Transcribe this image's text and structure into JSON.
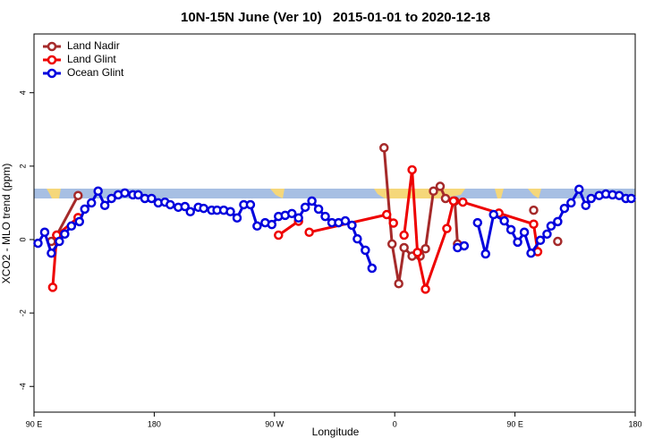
{
  "chart_data": {
    "type": "line",
    "title": "10N-15N June (Ver 10)   2015-01-01 to 2020-12-18",
    "x_label": "Longitude",
    "y_label": "XCO2 - MLO trend (ppm)",
    "xlim": [
      90,
      540
    ],
    "ylim": [
      -4.7,
      5.6
    ],
    "xticks": [
      {
        "value": 90,
        "label": "90 E"
      },
      180,
      {
        "value": 270,
        "label": "90 W"
      },
      {
        "value": 360,
        "label": "0"
      },
      {
        "value": 450,
        "label": "90 E"
      },
      {
        "value": 540,
        "label": "180"
      }
    ],
    "yticks": [
      -4,
      -2,
      0,
      2,
      4
    ],
    "legend": "top-left",
    "series": [
      {
        "name": "Land Nadir",
        "color": "#a52a2a",
        "x": [
          103,
          107,
          123,
          348,
          352,
          358,
          363,
          367,
          373,
          379,
          383,
          389,
          394,
          398,
          405,
          407,
          438,
          464,
          466,
          482
        ],
        "values": [
          -0.05,
          0.12,
          1.2,
          null,
          2.5,
          -0.12,
          -1.2,
          -0.22,
          -0.45,
          -0.45,
          -0.25,
          1.32,
          1.45,
          1.12,
          1.05,
          -0.12,
          null,
          0.8,
          null,
          -0.05
        ]
      },
      {
        "name": "Land Glint",
        "color": "#ee0000",
        "x": [
          104,
          107,
          123,
          269,
          273,
          288,
          292,
          296,
          354,
          359,
          362,
          367,
          373,
          377,
          383,
          399,
          404,
          411,
          438,
          464,
          467,
          482
        ],
        "values": [
          -1.3,
          0.12,
          0.6,
          null,
          0.12,
          0.5,
          null,
          0.2,
          0.68,
          0.45,
          null,
          0.12,
          1.9,
          -0.35,
          -1.35,
          0.3,
          1.05,
          1.02,
          0.72,
          0.42,
          -0.33,
          null
        ]
      },
      {
        "name": "Ocean Glint",
        "color": "#0000dd",
        "x": [
          93,
          98,
          103,
          109,
          113,
          118,
          124,
          128,
          133,
          138,
          143,
          148,
          153,
          158,
          164,
          168,
          173,
          178,
          183,
          188,
          192,
          198,
          203,
          207,
          213,
          217,
          223,
          227,
          232,
          237,
          242,
          247,
          252,
          257,
          263,
          268,
          273,
          278,
          283,
          288,
          293,
          298,
          303,
          308,
          313,
          318,
          323,
          328,
          332,
          338,
          343,
          375,
          407,
          412,
          417,
          422,
          428,
          434,
          442,
          447,
          452,
          457,
          462,
          469,
          474,
          477,
          482,
          487,
          492,
          498,
          503,
          507,
          513,
          518,
          523,
          528,
          533,
          537
        ],
        "values": [
          -0.1,
          0.2,
          -0.37,
          -0.05,
          0.15,
          0.37,
          0.49,
          0.83,
          1.0,
          1.32,
          0.93,
          1.12,
          1.22,
          1.27,
          1.22,
          1.22,
          1.12,
          1.12,
          1.0,
          1.02,
          0.95,
          0.88,
          0.9,
          0.76,
          0.88,
          0.85,
          0.8,
          0.8,
          0.8,
          0.76,
          0.59,
          0.95,
          0.95,
          0.37,
          0.46,
          0.41,
          0.63,
          0.66,
          0.71,
          0.59,
          0.88,
          1.05,
          0.83,
          0.63,
          0.46,
          0.46,
          0.51,
          0.39,
          0.02,
          -0.29,
          -0.78,
          null,
          -0.22,
          -0.17,
          null,
          0.46,
          -0.39,
          0.68,
          0.51,
          0.27,
          -0.07,
          0.2,
          -0.37,
          -0.02,
          0.15,
          0.37,
          0.49,
          0.85,
          1.0,
          1.37,
          0.93,
          1.12,
          1.2,
          1.24,
          1.22,
          1.2,
          1.12,
          1.12
        ]
      }
    ]
  }
}
